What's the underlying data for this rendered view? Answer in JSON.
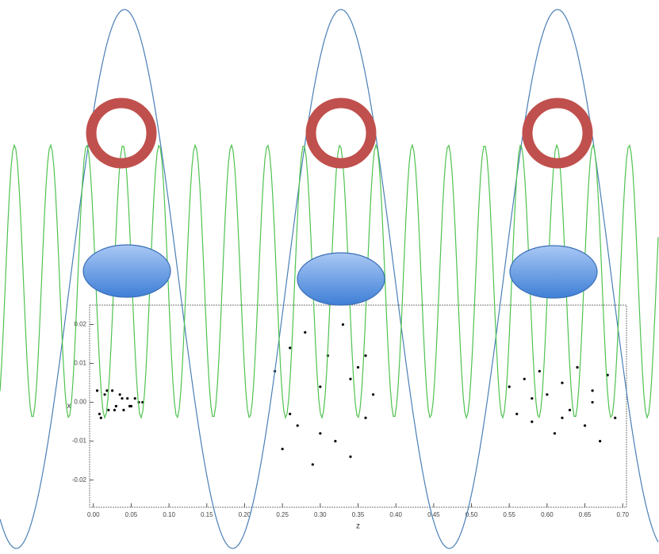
{
  "chart_data": {
    "type": "scatter",
    "x_label": "z",
    "y_label": "x",
    "color": "#000000",
    "xlim": [
      -0.005,
      0.705
    ],
    "ylim": [
      -0.027,
      0.025
    ],
    "xticks": [
      {
        "value": 0,
        "label": "0.00"
      },
      0.05,
      {
        "value": 0.1,
        "label": "0.10"
      },
      0.15,
      {
        "value": 0.2,
        "label": "0.20"
      },
      0.25,
      {
        "value": 0.3,
        "label": "0.30"
      },
      0.35,
      {
        "value": 0.4,
        "label": "0.40"
      },
      0.45,
      {
        "value": 0.5,
        "label": "0.50"
      },
      0.55,
      {
        "value": 0.6,
        "label": "0.60"
      },
      0.65,
      {
        "value": 0.7,
        "label": "0.70"
      }
    ],
    "yticks": [
      -0.02,
      -0.01,
      {
        "value": 0,
        "label": "0.00"
      },
      0.01,
      0.02
    ],
    "x": [
      0.005,
      0.01,
      0.015,
      0.02,
      0.025,
      0.03,
      0.035,
      0.04,
      0.045,
      0.05,
      0.055,
      0.06,
      0.065,
      0.008,
      0.018,
      0.028,
      0.038,
      0.048,
      0.24,
      0.25,
      0.26,
      0.27,
      0.28,
      0.29,
      0.3,
      0.31,
      0.32,
      0.33,
      0.34,
      0.35,
      0.36,
      0.37,
      0.26,
      0.3,
      0.34,
      0.36,
      0.55,
      0.56,
      0.57,
      0.58,
      0.59,
      0.6,
      0.61,
      0.62,
      0.63,
      0.64,
      0.65,
      0.66,
      0.67,
      0.68,
      0.69,
      0.58,
      0.62,
      0.66
    ],
    "values": [
      0.003,
      -0.004,
      0.002,
      -0.002,
      0.003,
      -0.001,
      0.002,
      -0.002,
      0.001,
      -0.001,
      0.001,
      0,
      0,
      -0.003,
      0.003,
      -0.002,
      0.001,
      -0.001,
      0.008,
      -0.012,
      0.014,
      -0.006,
      0.018,
      -0.016,
      0.004,
      0.012,
      -0.01,
      0.02,
      -0.014,
      0.009,
      -0.004,
      0.002,
      -0.003,
      -0.008,
      0.006,
      0.012,
      0.004,
      -0.003,
      0.006,
      -0.005,
      0.008,
      0.002,
      -0.008,
      0.005,
      -0.002,
      0.009,
      -0.006,
      0.003,
      -0.01,
      0.007,
      -0.004,
      0.001,
      -0.004,
      0.0
    ]
  }
}
